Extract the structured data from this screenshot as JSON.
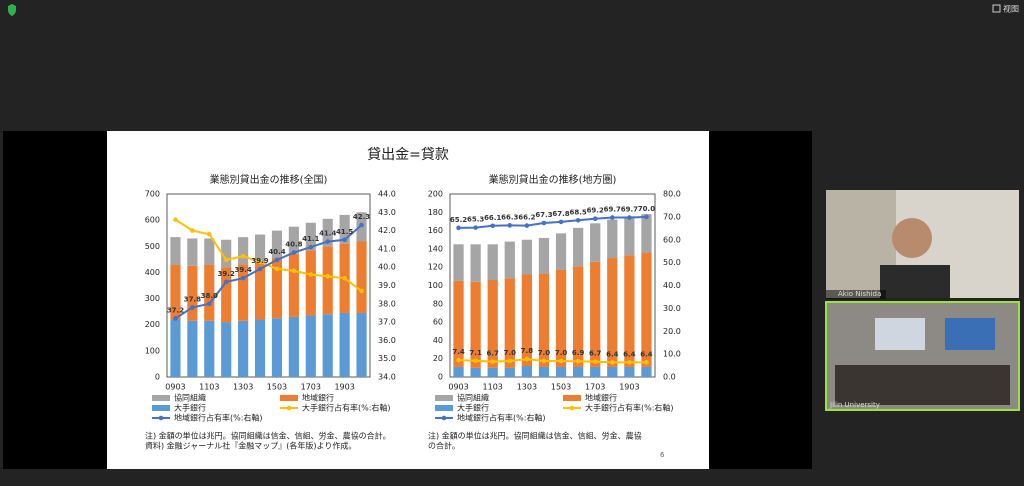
{
  "ui": {
    "view_button": "视图",
    "participants": [
      "Akio Nishida",
      "Jilin University"
    ]
  },
  "slide": {
    "title": "貸出金=貸款",
    "page": "6"
  },
  "chart_data": [
    {
      "type": "bar",
      "stacked": true,
      "title": "業態別貸出金の推移(全国)",
      "categories": [
        "0903",
        null,
        "1103",
        null,
        "1303",
        null,
        "1503",
        null,
        "1703",
        null,
        "1903",
        null
      ],
      "series": [
        {
          "name": "協同組織",
          "color": "#a5a5a5",
          "values": [
            105,
            105,
            100,
            105,
            105,
            105,
            105,
            105,
            105,
            105,
            110,
            110
          ]
        },
        {
          "name": "地域銀行",
          "color": "#ed7d31",
          "values": [
            210,
            210,
            215,
            210,
            215,
            220,
            230,
            240,
            250,
            260,
            265,
            275
          ]
        },
        {
          "name": "大手銀行",
          "color": "#5b9bd5",
          "values": [
            220,
            215,
            215,
            210,
            215,
            220,
            225,
            230,
            235,
            240,
            245,
            245
          ]
        },
        {
          "name": "大手銀行占有率(%:右軸)",
          "type": "line",
          "axis": "y2",
          "color": "#ffc000",
          "values": [
            42.6,
            42.0,
            41.8,
            40.4,
            40.6,
            40.3,
            39.9,
            39.8,
            39.6,
            39.5,
            39.4,
            38.7
          ]
        },
        {
          "name": "地域銀行占有率(%:右軸)",
          "type": "line",
          "axis": "y2",
          "color": "#4472c4",
          "values": [
            37.2,
            37.8,
            38.0,
            39.2,
            39.4,
            39.9,
            40.4,
            40.8,
            41.1,
            41.4,
            41.5,
            42.3
          ],
          "value_labels": [
            "37.2",
            "37.8",
            "38.0",
            "39.2",
            "39.4",
            "39.9",
            "40.4",
            "40.8",
            "41.1",
            "41.4",
            "41.5",
            "42.3"
          ]
        }
      ],
      "ylim": [
        0,
        700
      ],
      "yticks": [
        0,
        100,
        200,
        300,
        400,
        500,
        600,
        700
      ],
      "y2lim": [
        34,
        44
      ],
      "y2ticks": [
        {
          "value": 34,
          "label": "34.0"
        },
        {
          "value": 35,
          "label": "35.0"
        },
        {
          "value": 36,
          "label": "36.0"
        },
        {
          "value": 37,
          "label": "37.0"
        },
        {
          "value": 38,
          "label": "38.0"
        },
        {
          "value": 39,
          "label": "39.0"
        },
        {
          "value": 40,
          "label": "40.0"
        },
        {
          "value": 41,
          "label": "41.0"
        },
        {
          "value": 42,
          "label": "42.0"
        },
        {
          "value": 43,
          "label": "43.0"
        },
        {
          "value": 44,
          "label": "44.0"
        }
      ],
      "grid": false,
      "note": [
        "注) 金額の単位は兆円。協同組織は信金、信組、労金、農協の合計。",
        "資料) 金融ジャーナル社『金融マップ』(各年版)より作成。"
      ]
    },
    {
      "type": "bar",
      "stacked": true,
      "title": "業態別貸出金の推移(地方圏)",
      "categories": [
        "0903",
        null,
        "1103",
        null,
        "1303",
        null,
        "1503",
        null,
        "1703",
        null,
        "1903",
        null
      ],
      "series": [
        {
          "name": "協同組織",
          "color": "#a5a5a5",
          "values": [
            40,
            41,
            39,
            40,
            38,
            39,
            40,
            42,
            42,
            42,
            42,
            42
          ]
        },
        {
          "name": "地域銀行",
          "color": "#ed7d31",
          "values": [
            94,
            94,
            96,
            98,
            100,
            102,
            106,
            110,
            115,
            119,
            122,
            125
          ]
        },
        {
          "name": "大手銀行",
          "color": "#5b9bd5",
          "values": [
            11,
            10,
            10,
            10,
            12,
            11,
            11,
            11,
            11,
            11,
            11,
            11
          ]
        },
        {
          "name": "大手銀行占有率(%:右軸)",
          "type": "line",
          "axis": "y2",
          "color": "#ffc000",
          "values": [
            7.4,
            7.1,
            6.7,
            7.0,
            7.8,
            7.0,
            7.0,
            6.9,
            6.7,
            6.4,
            6.4,
            6.4
          ],
          "value_labels": [
            "7.4",
            "7.1",
            "6.7",
            "7.0",
            "7.8",
            "7.0",
            "7.0",
            "6.9",
            "6.7",
            "6.4",
            "6.4",
            "6.4"
          ]
        },
        {
          "name": "地域銀行占有率(%:右軸)",
          "type": "line",
          "axis": "y2",
          "color": "#4472c4",
          "values": [
            65.2,
            65.3,
            66.1,
            66.3,
            66.2,
            67.3,
            67.8,
            68.5,
            69.2,
            69.7,
            69.7,
            70.0
          ],
          "value_labels": [
            "65.2",
            "65.3",
            "66.1",
            "66.3",
            "66.2",
            "67.3",
            "67.8",
            "68.5",
            "69.2",
            "69.7",
            "69.7",
            "70.0"
          ]
        }
      ],
      "ylim": [
        0,
        200
      ],
      "yticks": [
        0,
        20,
        40,
        60,
        80,
        100,
        120,
        140,
        160,
        180,
        200
      ],
      "y2lim": [
        0,
        80
      ],
      "y2ticks": [
        {
          "value": 0,
          "label": "0.0"
        },
        {
          "value": 10,
          "label": "10.0"
        },
        {
          "value": 20,
          "label": "20.0"
        },
        {
          "value": 30,
          "label": "30.0"
        },
        {
          "value": 40,
          "label": "40.0"
        },
        {
          "value": 50,
          "label": "50.0"
        },
        {
          "value": 60,
          "label": "60.0"
        },
        {
          "value": 70,
          "label": "70.0"
        },
        {
          "value": 80,
          "label": "80.0"
        }
      ],
      "grid": false,
      "note": [
        "注) 金額の単位は兆円。協同組織は信金、信組、労金、農協",
        "の合計。"
      ]
    }
  ]
}
